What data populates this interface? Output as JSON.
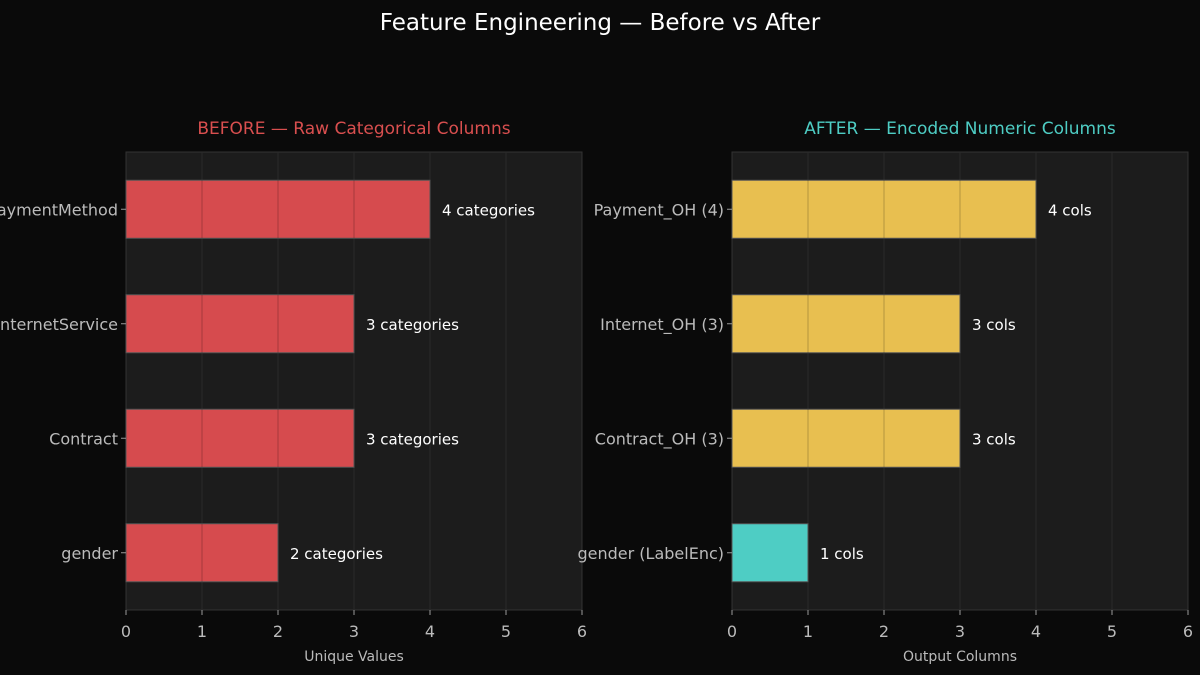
{
  "title": "Feature Engineering — Before vs After",
  "chart_data": [
    {
      "type": "bar",
      "orientation": "horizontal",
      "title": "BEFORE — Raw Categorical Columns",
      "title_color": "#d94f4f",
      "categories": [
        "PaymentMethod",
        "InternetService",
        "Contract",
        "gender"
      ],
      "values": [
        4,
        3,
        3,
        2
      ],
      "data_labels": [
        "4 categories",
        "3 categories",
        "3 categories",
        "2 categories"
      ],
      "bar_colors": [
        "#d64b4e",
        "#d64b4e",
        "#d64b4e",
        "#d64b4e"
      ],
      "xlabel": "Unique Values",
      "xlim": [
        0,
        6
      ],
      "xticks": [
        0,
        1,
        2,
        3,
        4,
        5,
        6
      ]
    },
    {
      "type": "bar",
      "orientation": "horizontal",
      "title": "AFTER — Encoded Numeric Columns",
      "title_color": "#4ecdc4",
      "categories": [
        "Payment_OH (4)",
        "Internet_OH (3)",
        "Contract_OH (3)",
        "gender (LabelEnc)"
      ],
      "values": [
        4,
        3,
        3,
        1
      ],
      "data_labels": [
        "4 cols",
        "3 cols",
        "3 cols",
        "1 cols"
      ],
      "bar_colors": [
        "#e8bf50",
        "#e8bf50",
        "#e8bf50",
        "#4ecdc4"
      ],
      "xlabel": "Output Columns",
      "xlim": [
        0,
        6
      ],
      "xticks": [
        0,
        1,
        2,
        3,
        4,
        5,
        6
      ]
    }
  ]
}
